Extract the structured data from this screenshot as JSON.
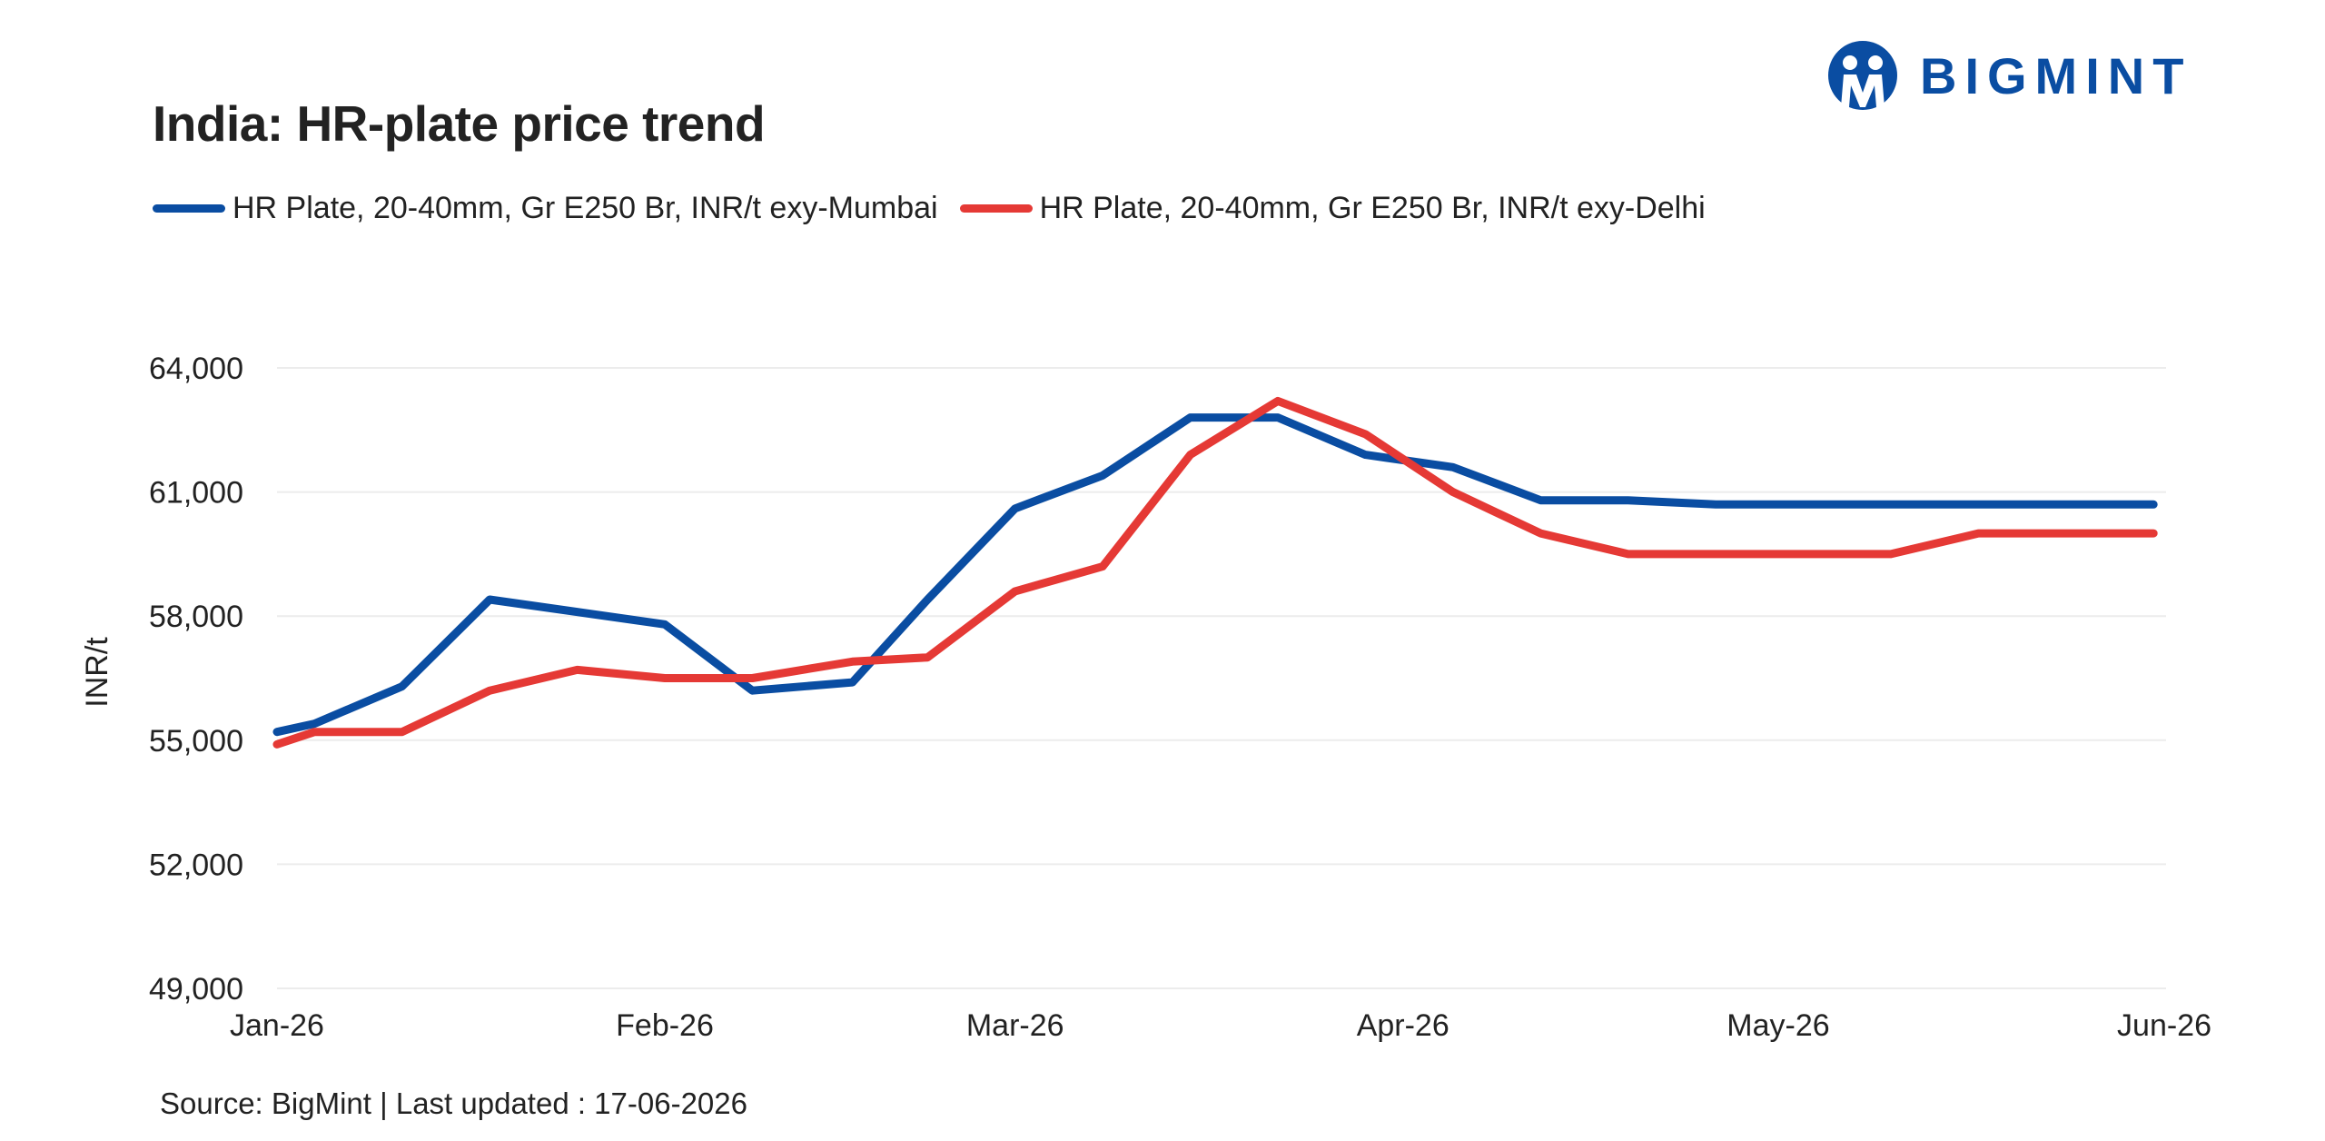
{
  "brand": {
    "name": "BIGMINT",
    "color": "#0a4da2"
  },
  "chart_data": {
    "type": "line",
    "title": "India: HR-plate price trend",
    "ylabel": "INR/t",
    "xlabel": "",
    "ylim": [
      49000,
      64000
    ],
    "xlim": [
      "2026-01-01",
      "2026-06-01"
    ],
    "yticks": [
      49000,
      52000,
      55000,
      58000,
      61000,
      64000
    ],
    "ytick_labels": [
      "49,000",
      "52,000",
      "55,000",
      "58,000",
      "61,000",
      "64,000"
    ],
    "xticks": [
      "2026-01-01",
      "2026-02-01",
      "2026-03-01",
      "2026-04-01",
      "2026-05-01",
      "2026-06-01"
    ],
    "xtick_labels": [
      "Jan-26",
      "Feb-26",
      "Mar-26",
      "Apr-26",
      "May-26",
      "Jun-26"
    ],
    "grid": "horizontal",
    "legend": "top-left",
    "series": [
      {
        "name": "HR Plate, 20-40mm, Gr E250 Br, INR/t exy-Mumbai",
        "color": "#0a4da2",
        "points": [
          [
            "2026-01-01",
            55200
          ],
          [
            "2026-01-04",
            55400
          ],
          [
            "2026-01-11",
            56300
          ],
          [
            "2026-01-18",
            58400
          ],
          [
            "2026-02-01",
            57800
          ],
          [
            "2026-02-08",
            56200
          ],
          [
            "2026-02-16",
            56400
          ],
          [
            "2026-02-22",
            58400
          ],
          [
            "2026-03-01",
            60600
          ],
          [
            "2026-03-08",
            61400
          ],
          [
            "2026-03-15",
            62800
          ],
          [
            "2026-03-22",
            62800
          ],
          [
            "2026-03-29",
            61900
          ],
          [
            "2026-04-05",
            61600
          ],
          [
            "2026-04-12",
            60800
          ],
          [
            "2026-04-19",
            60800
          ],
          [
            "2026-04-26",
            60700
          ],
          [
            "2026-05-31",
            60700
          ]
        ]
      },
      {
        "name": "HR Plate, 20-40mm, Gr E250 Br, INR/t exy-Delhi",
        "color": "#e53935",
        "points": [
          [
            "2026-01-01",
            54900
          ],
          [
            "2026-01-04",
            55200
          ],
          [
            "2026-01-11",
            55200
          ],
          [
            "2026-01-18",
            56200
          ],
          [
            "2026-01-25",
            56700
          ],
          [
            "2026-02-01",
            56500
          ],
          [
            "2026-02-08",
            56500
          ],
          [
            "2026-02-16",
            56900
          ],
          [
            "2026-02-22",
            57000
          ],
          [
            "2026-03-01",
            58600
          ],
          [
            "2026-03-08",
            59200
          ],
          [
            "2026-03-15",
            61900
          ],
          [
            "2026-03-22",
            63200
          ],
          [
            "2026-03-29",
            62400
          ],
          [
            "2026-04-05",
            61000
          ],
          [
            "2026-04-12",
            60000
          ],
          [
            "2026-04-19",
            59500
          ],
          [
            "2026-05-10",
            59500
          ],
          [
            "2026-05-17",
            60000
          ],
          [
            "2026-05-31",
            60000
          ]
        ]
      }
    ]
  },
  "source_note": "Source: BigMint | Last updated : 17-06-2026"
}
